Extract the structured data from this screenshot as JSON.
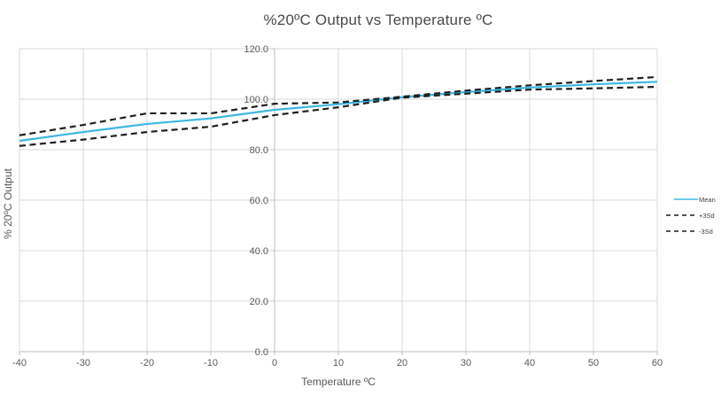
{
  "chart_data": {
    "type": "line",
    "title": "%20ºC Output vs Temperature ºC",
    "xlabel": "Temperature ºC",
    "ylabel": "% 20ºC Output",
    "x": [
      -40,
      -30,
      -20,
      -10,
      0,
      10,
      20,
      30,
      40,
      50,
      60
    ],
    "series": [
      {
        "name": "Mean",
        "style": "solid",
        "color": "#3bb7e2",
        "values": [
          83.5,
          87.0,
          90.2,
          92.4,
          95.8,
          98.0,
          100.8,
          102.8,
          104.6,
          105.9,
          106.9
        ]
      },
      {
        "name": "+3Sd",
        "style": "dashed",
        "color": "#1f1f1f",
        "values": [
          85.7,
          89.8,
          94.4,
          94.4,
          98.2,
          98.7,
          101.0,
          103.4,
          105.5,
          107.2,
          108.8
        ]
      },
      {
        "name": "-3Sd",
        "style": "dashed",
        "color": "#1f1f1f",
        "values": [
          81.5,
          84.0,
          87.0,
          89.1,
          93.7,
          96.8,
          100.6,
          102.2,
          103.8,
          104.3,
          104.9
        ]
      }
    ],
    "xlim": [
      -40,
      60
    ],
    "ylim": [
      0,
      120
    ],
    "x_ticks": [
      -40,
      -30,
      -20,
      -10,
      0,
      10,
      20,
      30,
      40,
      50,
      60
    ],
    "x_tick_labels": [
      "-40",
      "-30",
      "-20",
      "-10",
      "0",
      "10",
      "20",
      "30",
      "40",
      "50",
      "60"
    ],
    "y_ticks": [
      0,
      20,
      40,
      60,
      80,
      100,
      120
    ],
    "y_tick_labels": [
      "0.0",
      "20.0",
      "40.0",
      "60.0",
      "80.0",
      "100.0",
      "120.0"
    ],
    "grid": true,
    "legend_position": "right",
    "y_axis_crosses_at_x": 0
  },
  "colors": {
    "gridline": "#d9d9d9",
    "axis_line": "#bfbfbf",
    "tick_text": "#595959",
    "title_text": "#4a4a4a",
    "legend_text": "#404040",
    "background": "#ffffff"
  }
}
